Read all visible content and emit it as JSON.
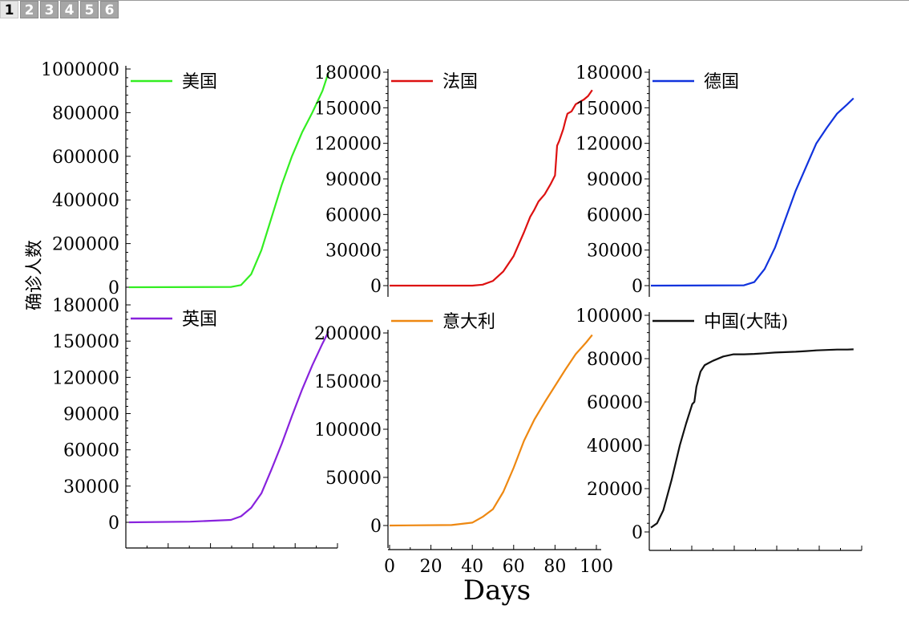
{
  "tabs": [
    "1",
    "2",
    "3",
    "4",
    "5",
    "6"
  ],
  "active_tab": 0,
  "chart_data": [
    {
      "type": "line",
      "series": [
        {
          "name": "美国",
          "color": "#33ee22",
          "x": [
            0,
            50,
            55,
            60,
            65,
            70,
            75,
            80,
            85,
            90,
            95,
            98
          ],
          "y": [
            0,
            1000,
            10000,
            60000,
            170000,
            320000,
            470000,
            600000,
            710000,
            800000,
            900000,
            985000
          ]
        }
      ],
      "ylim": [
        0,
        1000000
      ],
      "yticks": [
        "0",
        "200000",
        "400000",
        "600000",
        "800000",
        "1000000"
      ],
      "xlim": [
        0,
        100
      ],
      "show_x_tick_labels": false,
      "ylabel": "确诊人数",
      "legend": "top-left",
      "grid": false
    },
    {
      "type": "line",
      "series": [
        {
          "name": "法国",
          "color": "#dd1111",
          "x": [
            0,
            40,
            45,
            50,
            55,
            60,
            65,
            68,
            70,
            72,
            75,
            78,
            80,
            81,
            82,
            84,
            85,
            86,
            88,
            90,
            92,
            94,
            96,
            98
          ],
          "y": [
            0,
            0,
            800,
            4000,
            12000,
            25000,
            45000,
            58000,
            64000,
            71000,
            77000,
            86000,
            93000,
            118000,
            122000,
            132000,
            139000,
            145000,
            147000,
            153000,
            155000,
            157000,
            160000,
            165000
          ]
        }
      ],
      "ylim": [
        0,
        180000
      ],
      "yticks": [
        "0",
        "30000",
        "60000",
        "90000",
        "120000",
        "150000",
        "180000"
      ],
      "xlim": [
        0,
        100
      ],
      "show_x_tick_labels": false,
      "legend": "top-left",
      "grid": false
    },
    {
      "type": "line",
      "series": [
        {
          "name": "德国",
          "color": "#1133dd",
          "x": [
            0,
            45,
            50,
            55,
            60,
            65,
            70,
            75,
            80,
            85,
            90,
            95,
            98
          ],
          "y": [
            0,
            300,
            3000,
            14000,
            32000,
            56000,
            80000,
            100000,
            120000,
            133000,
            145000,
            153000,
            158000
          ]
        }
      ],
      "ylim": [
        0,
        180000
      ],
      "yticks": [
        "0",
        "30000",
        "60000",
        "90000",
        "120000",
        "150000",
        "180000"
      ],
      "xlim": [
        0,
        100
      ],
      "show_x_tick_labels": false,
      "legend": "top-left",
      "grid": false
    },
    {
      "type": "line",
      "series": [
        {
          "name": "英国",
          "color": "#8822dd",
          "x": [
            0,
            30,
            50,
            55,
            60,
            65,
            70,
            75,
            80,
            85,
            90,
            95,
            98
          ],
          "y": [
            0,
            500,
            2000,
            5000,
            12000,
            24000,
            44000,
            65000,
            88000,
            110000,
            130000,
            148000,
            158000
          ]
        }
      ],
      "ylim": [
        0,
        180000
      ],
      "yticks": [
        "0",
        "30000",
        "60000",
        "90000",
        "120000",
        "150000",
        "180000"
      ],
      "xlim": [
        0,
        100
      ],
      "show_x_tick_labels": false,
      "legend": "top-left",
      "grid": false
    },
    {
      "type": "line",
      "series": [
        {
          "name": "意大利",
          "color": "#ee8811",
          "x": [
            0,
            30,
            40,
            45,
            50,
            55,
            60,
            65,
            70,
            75,
            80,
            85,
            90,
            95,
            98
          ],
          "y": [
            0,
            500,
            3000,
            9000,
            17000,
            35000,
            60000,
            88000,
            110000,
            128000,
            145000,
            162000,
            178000,
            190000,
            198000
          ]
        }
      ],
      "ylim": [
        0,
        200000
      ],
      "yticks": [
        "0",
        "50000",
        "100000",
        "150000",
        "200000"
      ],
      "xlim": [
        0,
        100
      ],
      "xticks": [
        "0",
        "20",
        "40",
        "60",
        "80",
        "100"
      ],
      "xlabel": "Days",
      "legend": "top-left",
      "grid": false
    },
    {
      "type": "line",
      "series": [
        {
          "name": "中国(大陆)",
          "color": "#111111",
          "x": [
            0,
            3,
            6,
            10,
            14,
            17,
            20,
            21,
            22,
            24,
            26,
            28,
            30,
            35,
            40,
            45,
            50,
            55,
            60,
            65,
            70,
            75,
            80,
            85,
            90,
            95,
            98
          ],
          "y": [
            2000,
            4000,
            10000,
            24000,
            40000,
            50000,
            59000,
            60000,
            67000,
            74000,
            77000,
            78000,
            79000,
            81000,
            82000,
            82000,
            82200,
            82500,
            82800,
            83000,
            83200,
            83500,
            83800,
            84000,
            84200,
            84200,
            84300
          ]
        }
      ],
      "ylim": [
        0,
        100000
      ],
      "yticks": [
        "0",
        "20000",
        "40000",
        "60000",
        "80000",
        "100000"
      ],
      "xlim": [
        0,
        100
      ],
      "show_x_tick_labels": false,
      "legend": "top-left",
      "grid": false
    }
  ]
}
